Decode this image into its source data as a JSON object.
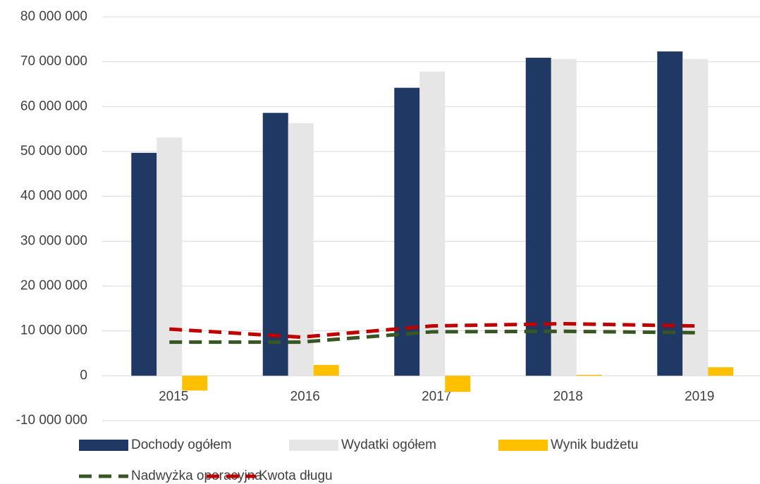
{
  "chart_data": {
    "type": "bar-line",
    "categories": [
      "2015",
      "2016",
      "2017",
      "2018",
      "2019"
    ],
    "series": [
      {
        "name": "Dochody ogółem",
        "type": "bar",
        "color": "#1f3864",
        "values": [
          49700000,
          58600000,
          64200000,
          70900000,
          72300000
        ]
      },
      {
        "name": "Wydatki ogółem",
        "type": "bar",
        "color": "#e7e6e6",
        "values": [
          53100000,
          56300000,
          67800000,
          70600000,
          70600000
        ]
      },
      {
        "name": "Wynik budżetu",
        "type": "bar",
        "color": "#ffc000",
        "values": [
          -3300000,
          2400000,
          -3600000,
          200000,
          1900000
        ]
      },
      {
        "name": "Nadwyżka operacyjna",
        "type": "line",
        "color": "#375623",
        "values": [
          7500000,
          7500000,
          9800000,
          9900000,
          9600000
        ]
      },
      {
        "name": "Kwota długu",
        "type": "line",
        "color": "#c00000",
        "values": [
          10400000,
          8600000,
          11100000,
          11600000,
          11100000
        ]
      }
    ],
    "ylim": [
      -10000000,
      80000000
    ],
    "yticks": [
      {
        "value": -10000000,
        "label": "-10 000 000"
      },
      0,
      {
        "value": 10000000,
        "label": "10 000 000"
      },
      {
        "value": 20000000,
        "label": "20 000 000"
      },
      {
        "value": 30000000,
        "label": "30 000 000"
      },
      {
        "value": 40000000,
        "label": "40 000 000"
      },
      {
        "value": 50000000,
        "label": "50 000 000"
      },
      {
        "value": 60000000,
        "label": "60 000 000"
      },
      {
        "value": 70000000,
        "label": "70 000 000"
      },
      {
        "value": 80000000,
        "label": "80 000 000"
      }
    ],
    "grid": true
  }
}
